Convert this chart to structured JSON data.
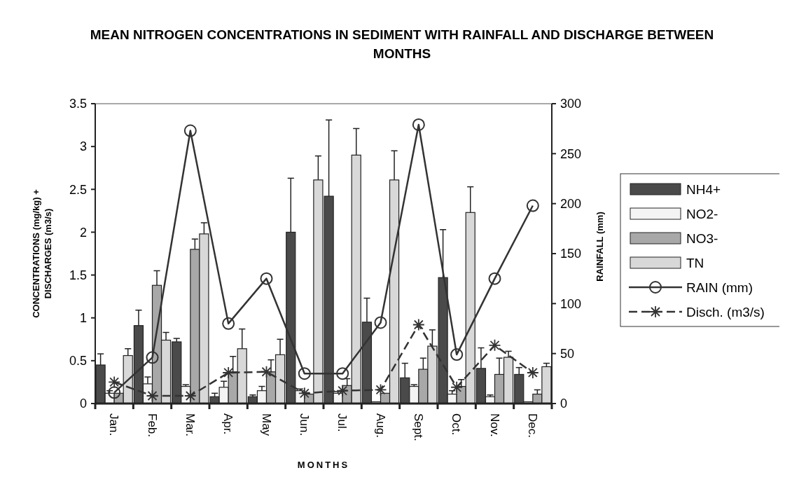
{
  "chart_data": {
    "type": "bar",
    "title": "MEAN NITROGEN CONCENTRATIONS IN SEDIMENT WITH RAINFALL AND DISCHARGE BETWEEN MONTHS",
    "xlabel": "MONTHS",
    "ylabel": "CONCENTRATIONS (mg/kg) + DISCHARGES (m3/s)",
    "y2label": "RAINFALL (mm)",
    "categories": [
      "Jan.",
      "Feb.",
      "Mar.",
      "Apr.",
      "May",
      "Jun.",
      "Jul.",
      "Aug.",
      "Sept.",
      "Oct.",
      "Nov.",
      "Dec."
    ],
    "series": [
      {
        "name": "NH4+",
        "color": "#4a4a4a",
        "values": [
          0.45,
          0.91,
          0.72,
          0.08,
          0.08,
          2.0,
          2.42,
          0.95,
          0.3,
          1.47,
          0.41,
          0.34
        ],
        "errors": [
          [
            0.45,
            0.58
          ],
          [
            0.91,
            1.09
          ],
          [
            0.72,
            0.76
          ],
          [
            0.08,
            0.12
          ],
          [
            0.08,
            0.1
          ],
          [
            2.0,
            2.63
          ],
          [
            2.42,
            3.31
          ],
          [
            0.95,
            1.23
          ],
          [
            0.3,
            0.47
          ],
          [
            1.47,
            2.03
          ],
          [
            0.41,
            0.65
          ],
          [
            0.34,
            0.42
          ]
        ]
      },
      {
        "name": "NO2-",
        "color": "#f4f4f4",
        "values": [
          0.12,
          0.23,
          0.2,
          0.19,
          0.15,
          0.15,
          0.12,
          0.02,
          0.2,
          0.11,
          0.08,
          0.02
        ],
        "errors": [
          [
            0.12,
            0.15
          ],
          [
            0.23,
            0.31
          ],
          [
            0.2,
            0.22
          ],
          [
            0.19,
            0.26
          ],
          [
            0.15,
            0.2
          ],
          [
            0.15,
            0.17
          ],
          [
            0.12,
            0.14
          ],
          null,
          [
            0.2,
            0.22
          ],
          [
            0.11,
            0.15
          ],
          [
            0.08,
            0.1
          ],
          null
        ]
      },
      {
        "name": "NO3-",
        "color": "#a8a8a8",
        "values": [
          0.12,
          1.38,
          1.8,
          0.37,
          0.37,
          0.11,
          0.21,
          0.12,
          0.4,
          0.2,
          0.34,
          0.11
        ],
        "errors": [
          null,
          [
            1.38,
            1.55
          ],
          [
            1.8,
            1.92
          ],
          [
            0.37,
            0.55
          ],
          [
            0.37,
            0.51
          ],
          null,
          [
            0.21,
            0.29
          ],
          null,
          [
            0.4,
            0.53
          ],
          [
            0.2,
            0.28
          ],
          [
            0.34,
            0.53
          ],
          [
            0.11,
            0.16
          ]
        ]
      },
      {
        "name": "TN",
        "color": "#d8d8d8",
        "values": [
          0.56,
          0.74,
          1.98,
          0.64,
          0.57,
          2.61,
          2.9,
          2.61,
          0.67,
          2.23,
          0.54,
          0.43
        ],
        "errors": [
          [
            0.56,
            0.64
          ],
          [
            0.74,
            0.83
          ],
          [
            1.98,
            2.11
          ],
          [
            0.64,
            0.87
          ],
          [
            0.57,
            0.75
          ],
          [
            2.61,
            2.89
          ],
          [
            2.9,
            3.21
          ],
          [
            2.61,
            2.95
          ],
          [
            0.67,
            0.86
          ],
          [
            2.23,
            2.53
          ],
          [
            0.54,
            0.61
          ],
          [
            0.43,
            0.47
          ]
        ]
      },
      {
        "name": "RAIN (mm)",
        "type": "line",
        "axis": "y2",
        "color": "#333333",
        "marker": "circle",
        "line_style": "solid",
        "values": [
          11,
          46,
          273,
          80,
          125,
          30,
          30,
          81,
          279,
          49,
          125,
          198
        ]
      },
      {
        "name": "Disch. (m3/s)",
        "type": "line",
        "axis": "y",
        "color": "#333333",
        "marker": "cross",
        "line_style": "dashed",
        "values": [
          0.25,
          0.09,
          0.09,
          0.36,
          0.37,
          0.12,
          0.15,
          0.16,
          0.92,
          0.19,
          0.68,
          0.36
        ]
      }
    ],
    "ylim": [
      0,
      3.5
    ],
    "yticks": [
      0,
      0.5,
      1,
      1.5,
      2,
      2.5,
      3,
      3.5
    ],
    "y2lim": [
      0,
      300
    ],
    "y2ticks": [
      0,
      50,
      100,
      150,
      200,
      250,
      300
    ],
    "legend": "right"
  }
}
